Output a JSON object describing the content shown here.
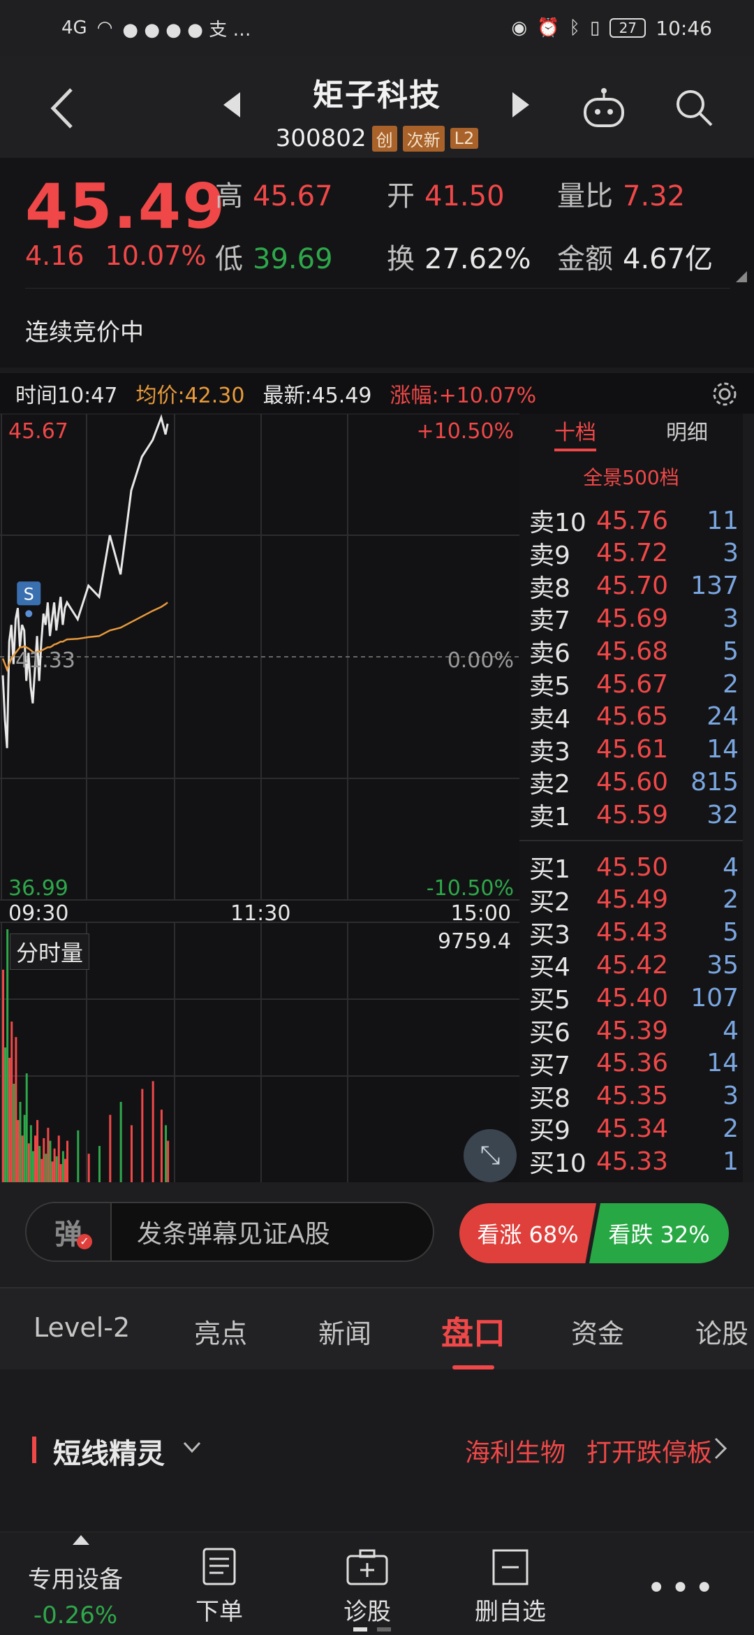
{
  "status_bar": {
    "network": "4G",
    "battery": "27",
    "time": "10:46"
  },
  "header": {
    "title": "矩子科技",
    "code": "300802",
    "tags": [
      "创",
      "次新",
      "L2"
    ]
  },
  "quote": {
    "price": "45.49",
    "change": "4.16",
    "change_pct": "10.07%",
    "high_label": "高",
    "high": "45.67",
    "low_label": "低",
    "low": "39.69",
    "open_label": "开",
    "open": "41.50",
    "turnover_label": "换",
    "turnover": "27.62%",
    "vol_ratio_label": "量比",
    "vol_ratio": "7.32",
    "amount_label": "金额",
    "amount": "4.67亿",
    "status": "连续竞价中"
  },
  "info_bar": {
    "time": "时间10:47",
    "avg": "均价:42.30",
    "latest": "最新:45.49",
    "pct": "涨幅:+10.07%"
  },
  "chart": {
    "y_top": "45.67",
    "y_bottom": "36.99",
    "pct_top": "+10.50%",
    "pct_bottom": "-10.50%",
    "pct_mid": "0.00%",
    "mid_price": "41.33",
    "x_labels": [
      "09:30",
      "11:30",
      "15:00"
    ],
    "volume_label": "分时量",
    "volume_max": "9759.4",
    "marker": "S"
  },
  "chart_data": {
    "type": "line",
    "x": [
      "09:30",
      "09:31",
      "09:32",
      "09:33",
      "09:34",
      "09:35",
      "09:36",
      "09:37",
      "09:38",
      "09:39",
      "09:40",
      "09:41",
      "09:42",
      "09:43",
      "09:44",
      "09:45",
      "09:46",
      "09:47",
      "09:48",
      "09:49",
      "09:50",
      "09:51",
      "09:52",
      "09:53",
      "09:54",
      "09:55",
      "09:56",
      "09:57",
      "09:58",
      "09:59",
      "10:00",
      "10:05",
      "10:10",
      "10:15",
      "10:20",
      "10:25",
      "10:30",
      "10:35",
      "10:40",
      "10:44",
      "10:46",
      "10:47"
    ],
    "series": [
      {
        "values": [
          41.0,
          40.2,
          39.7,
          41.6,
          41.9,
          41.2,
          42.0,
          42.2,
          41.5,
          41.9,
          41.8,
          40.9,
          41.4,
          40.8,
          40.5,
          41.1,
          41.7,
          40.9,
          41.6,
          42.1,
          41.9,
          42.3,
          41.7,
          42.0,
          42.3,
          41.8,
          42.1,
          42.4,
          41.9,
          42.2,
          42.3,
          42.0,
          42.6,
          42.4,
          43.5,
          42.8,
          44.3,
          44.9,
          45.2,
          45.6,
          45.3,
          45.49
        ]
      },
      {
        "values": [
          41.3,
          41.2,
          41.1,
          41.2,
          41.3,
          41.35,
          41.4,
          41.45,
          41.5,
          41.5,
          41.52,
          41.5,
          41.48,
          41.45,
          41.42,
          41.4,
          41.42,
          41.42,
          41.44,
          41.46,
          41.48,
          41.5,
          41.5,
          41.52,
          41.55,
          41.56,
          41.58,
          41.6,
          41.6,
          41.62,
          41.64,
          41.65,
          41.68,
          41.7,
          41.8,
          41.85,
          41.95,
          42.05,
          42.15,
          42.22,
          42.27,
          42.3
        ]
      }
    ],
    "ylim": [
      36.99,
      45.67
    ],
    "volume": [
      8200,
      5200,
      9759.4,
      4800,
      6200,
      3800,
      5600,
      2400,
      3100,
      1800,
      2600,
      4200,
      1500,
      2200,
      1200,
      1800,
      2400,
      1400,
      900,
      1700,
      1100,
      2100,
      1600,
      800,
      1300,
      1000,
      1800,
      700,
      1200,
      900,
      1600,
      2000,
      1100,
      1400,
      2600,
      3100,
      2200,
      3600,
      3900,
      2800,
      2200,
      1600
    ]
  },
  "order_book": {
    "tabs": [
      "十档",
      "明细"
    ],
    "label_500": "全景500档",
    "asks": [
      [
        "卖10",
        "45.76",
        "11"
      ],
      [
        "卖9",
        "45.72",
        "3"
      ],
      [
        "卖8",
        "45.70",
        "137"
      ],
      [
        "卖7",
        "45.69",
        "3"
      ],
      [
        "卖6",
        "45.68",
        "5"
      ],
      [
        "卖5",
        "45.67",
        "2"
      ],
      [
        "卖4",
        "45.65",
        "24"
      ],
      [
        "卖3",
        "45.61",
        "14"
      ],
      [
        "卖2",
        "45.60",
        "815"
      ],
      [
        "卖1",
        "45.59",
        "32"
      ]
    ],
    "bids": [
      [
        "买1",
        "45.50",
        "4"
      ],
      [
        "买2",
        "45.49",
        "2"
      ],
      [
        "买3",
        "45.43",
        "5"
      ],
      [
        "买4",
        "45.42",
        "35"
      ],
      [
        "买5",
        "45.40",
        "107"
      ],
      [
        "买6",
        "45.39",
        "4"
      ],
      [
        "买7",
        "45.36",
        "14"
      ],
      [
        "买8",
        "45.35",
        "3"
      ],
      [
        "买9",
        "45.34",
        "2"
      ],
      [
        "买10",
        "45.33",
        "1"
      ]
    ]
  },
  "danmu": {
    "icon_text": "弹",
    "placeholder": "发条弹幕见证A股",
    "up": "看涨 68%",
    "down": "看跌 32%"
  },
  "tabs": [
    "Level-2",
    "亮点",
    "新闻",
    "盘口",
    "资金",
    "论股"
  ],
  "section": {
    "title": "短线精灵",
    "link1": "海利生物",
    "link2": "打开跌停板"
  },
  "bottom": {
    "device": "专用设备",
    "device_pct": "-0.26%",
    "order": "下单",
    "diagnose": "诊股",
    "remove": "删自选"
  },
  "colors": {
    "up": "#f04848",
    "down": "#2ea84a",
    "price_line": "#e8e8e8",
    "avg_line": "#e89a3c"
  }
}
